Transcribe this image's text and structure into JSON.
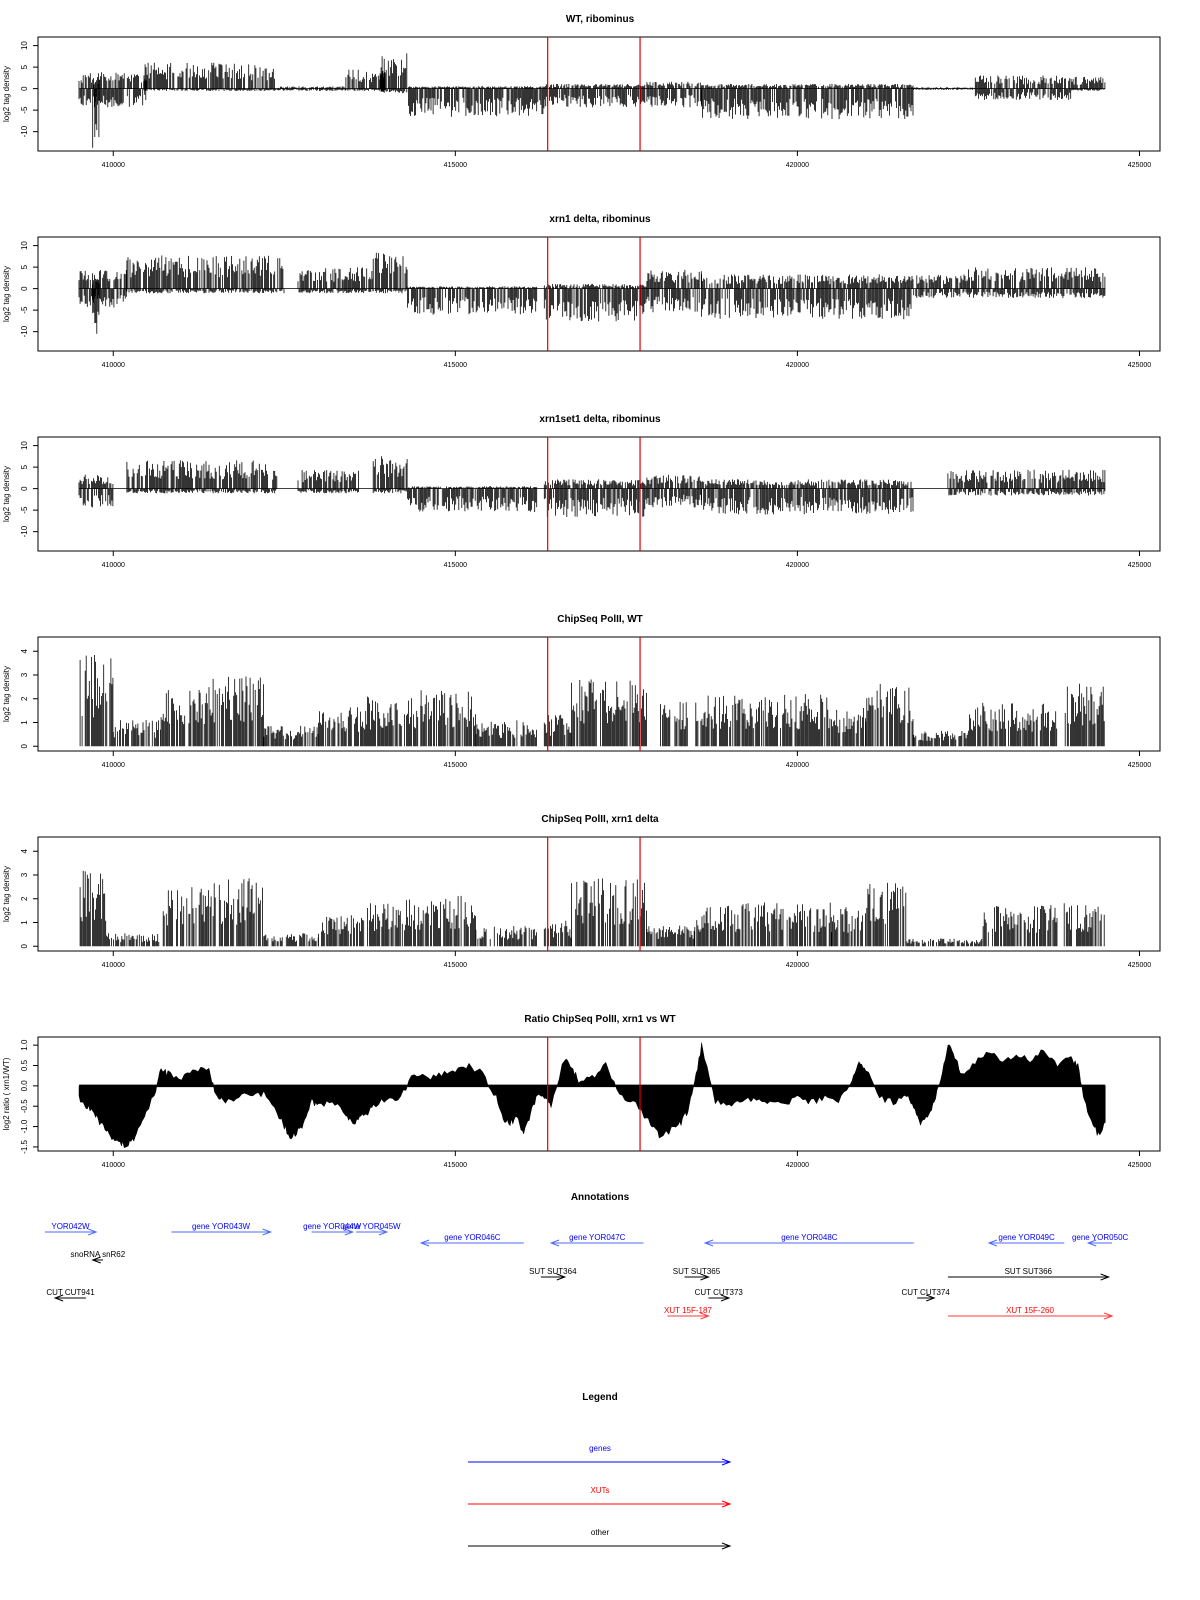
{
  "xaxis": {
    "range": [
      408900,
      425300
    ],
    "ticks": [
      410000,
      415000,
      420000,
      425000
    ],
    "tick_labels": [
      "410000",
      "415000",
      "420000",
      "425000"
    ]
  },
  "red_lines_x": [
    416350,
    417700
  ],
  "chart_data": [
    {
      "type": "bar",
      "title": "WT, ribominus",
      "ylabel": "log2 tag density",
      "ylim": [
        -14.5,
        12
      ],
      "yticks": [
        10,
        5,
        0,
        -5,
        -10
      ],
      "ytick_labels": [
        "10",
        "5",
        "0",
        "-5",
        "-10"
      ],
      "mode": "signed",
      "x_range": [
        409500,
        424500
      ],
      "segments": [
        {
          "from": 409500,
          "to": 410500,
          "pos": 3.5,
          "neg": -4
        },
        {
          "from": 409700,
          "to": 409800,
          "pos": 2,
          "neg": -13
        },
        {
          "from": 410450,
          "to": 412400,
          "pos": 5.5,
          "neg": -0.5
        },
        {
          "from": 412400,
          "to": 413400,
          "pos": 0.5,
          "neg": -0.5
        },
        {
          "from": 413400,
          "to": 414000,
          "pos": 4,
          "neg": -0.5
        },
        {
          "from": 413900,
          "to": 414300,
          "pos": 8,
          "neg": -1
        },
        {
          "from": 414300,
          "to": 416300,
          "pos": 0.5,
          "neg": -6
        },
        {
          "from": 416300,
          "to": 417800,
          "pos": 1,
          "neg": -4
        },
        {
          "from": 417800,
          "to": 418600,
          "pos": 1.5,
          "neg": -4
        },
        {
          "from": 418600,
          "to": 421700,
          "pos": 1,
          "neg": -6.5
        },
        {
          "from": 421700,
          "to": 422600,
          "pos": 0.3,
          "neg": -0.3
        },
        {
          "from": 422600,
          "to": 424000,
          "pos": 2.8,
          "neg": -2.5
        },
        {
          "from": 424000,
          "to": 424500,
          "pos": 2.5,
          "neg": -0.5
        }
      ]
    },
    {
      "type": "bar",
      "title": "xrn1 delta, ribominus",
      "ylabel": "log2 tag density",
      "ylim": [
        -14.5,
        12
      ],
      "yticks": [
        10,
        5,
        0,
        -5,
        -10
      ],
      "ytick_labels": [
        "10",
        "5",
        "0",
        "-5",
        "-10"
      ],
      "mode": "signed",
      "x_range": [
        409500,
        424500
      ],
      "segments": [
        {
          "from": 409500,
          "to": 410200,
          "pos": 4,
          "neg": -4
        },
        {
          "from": 409700,
          "to": 409800,
          "pos": 2,
          "neg": -11
        },
        {
          "from": 410200,
          "to": 412500,
          "pos": 7,
          "neg": -1
        },
        {
          "from": 412700,
          "to": 413800,
          "pos": 4.5,
          "neg": -1
        },
        {
          "from": 413800,
          "to": 414300,
          "pos": 8,
          "neg": -1
        },
        {
          "from": 414300,
          "to": 416200,
          "pos": 0.5,
          "neg": -5.5
        },
        {
          "from": 416300,
          "to": 417800,
          "pos": 1,
          "neg": -7
        },
        {
          "from": 417800,
          "to": 418600,
          "pos": 4,
          "neg": -5
        },
        {
          "from": 418600,
          "to": 421700,
          "pos": 3,
          "neg": -6.5
        },
        {
          "from": 421700,
          "to": 422500,
          "pos": 3,
          "neg": -2
        },
        {
          "from": 422500,
          "to": 424500,
          "pos": 4.5,
          "neg": -2
        }
      ]
    },
    {
      "type": "bar",
      "title": "xrn1set1 delta, ribominus",
      "ylabel": "log2 tag density",
      "ylim": [
        -14.5,
        12
      ],
      "yticks": [
        10,
        5,
        0,
        -5,
        -10
      ],
      "ytick_labels": [
        "10",
        "5",
        "0",
        "-5",
        "-10"
      ],
      "mode": "signed",
      "x_range": [
        409500,
        424500
      ],
      "segments": [
        {
          "from": 409500,
          "to": 410000,
          "pos": 3,
          "neg": -4
        },
        {
          "from": 410200,
          "to": 412400,
          "pos": 6,
          "neg": -1
        },
        {
          "from": 412700,
          "to": 413600,
          "pos": 4,
          "neg": -1
        },
        {
          "from": 413800,
          "to": 414300,
          "pos": 7,
          "neg": -1
        },
        {
          "from": 414300,
          "to": 416200,
          "pos": 0.5,
          "neg": -5
        },
        {
          "from": 416300,
          "to": 417800,
          "pos": 2,
          "neg": -6
        },
        {
          "from": 417800,
          "to": 418600,
          "pos": 3,
          "neg": -4
        },
        {
          "from": 418600,
          "to": 421700,
          "pos": 2,
          "neg": -5.5
        },
        {
          "from": 422200,
          "to": 424500,
          "pos": 4,
          "neg": -1.5
        }
      ]
    },
    {
      "type": "bar",
      "title": "ChipSeq PolII, WT",
      "ylabel": "log2 tag density",
      "ylim": [
        -0.2,
        4.6
      ],
      "yticks": [
        0,
        1,
        2,
        3,
        4
      ],
      "ytick_labels": [
        "0",
        "1",
        "2",
        "3",
        "4"
      ],
      "mode": "positive",
      "x_range": [
        409500,
        424500
      ],
      "segments": [
        {
          "from": 409500,
          "to": 410000,
          "pos": 3.5
        },
        {
          "from": 410000,
          "to": 410700,
          "pos": 1
        },
        {
          "from": 410700,
          "to": 411400,
          "pos": 2.2
        },
        {
          "from": 411400,
          "to": 412200,
          "pos": 2.7
        },
        {
          "from": 412200,
          "to": 413000,
          "pos": 0.8
        },
        {
          "from": 413000,
          "to": 413700,
          "pos": 1.5
        },
        {
          "from": 413700,
          "to": 414500,
          "pos": 2
        },
        {
          "from": 414500,
          "to": 415300,
          "pos": 2.2
        },
        {
          "from": 415300,
          "to": 416200,
          "pos": 1
        },
        {
          "from": 416300,
          "to": 416700,
          "pos": 1.2
        },
        {
          "from": 416700,
          "to": 417800,
          "pos": 2.6
        },
        {
          "from": 418000,
          "to": 418400,
          "pos": 1.7
        },
        {
          "from": 418500,
          "to": 419500,
          "pos": 2
        },
        {
          "from": 419500,
          "to": 420500,
          "pos": 2
        },
        {
          "from": 420500,
          "to": 421000,
          "pos": 1.5
        },
        {
          "from": 421000,
          "to": 421700,
          "pos": 2.4
        },
        {
          "from": 421700,
          "to": 422500,
          "pos": 0.6
        },
        {
          "from": 422500,
          "to": 423800,
          "pos": 1.7
        },
        {
          "from": 423900,
          "to": 424500,
          "pos": 2.5
        }
      ]
    },
    {
      "type": "bar",
      "title": "ChipSeq PolII, xrn1 delta",
      "ylabel": "log2 tag density",
      "ylim": [
        -0.2,
        4.6
      ],
      "yticks": [
        0,
        1,
        2,
        3,
        4
      ],
      "ytick_labels": [
        "0",
        "1",
        "2",
        "3",
        "4"
      ],
      "mode": "positive",
      "x_range": [
        409500,
        424500
      ],
      "segments": [
        {
          "from": 409500,
          "to": 409900,
          "pos": 3
        },
        {
          "from": 409900,
          "to": 410700,
          "pos": 0.5
        },
        {
          "from": 410700,
          "to": 411400,
          "pos": 2.3
        },
        {
          "from": 411400,
          "to": 412200,
          "pos": 2.6
        },
        {
          "from": 412200,
          "to": 413000,
          "pos": 0.5
        },
        {
          "from": 413000,
          "to": 413700,
          "pos": 1.2
        },
        {
          "from": 413700,
          "to": 414500,
          "pos": 1.8
        },
        {
          "from": 414500,
          "to": 415300,
          "pos": 2
        },
        {
          "from": 415300,
          "to": 416200,
          "pos": 0.8
        },
        {
          "from": 416300,
          "to": 416700,
          "pos": 1
        },
        {
          "from": 416700,
          "to": 417800,
          "pos": 2.6
        },
        {
          "from": 417800,
          "to": 418500,
          "pos": 0.8
        },
        {
          "from": 418500,
          "to": 420500,
          "pos": 1.7
        },
        {
          "from": 420500,
          "to": 421000,
          "pos": 1.5
        },
        {
          "from": 421000,
          "to": 421600,
          "pos": 2.6
        },
        {
          "from": 421600,
          "to": 422700,
          "pos": 0.3
        },
        {
          "from": 422700,
          "to": 423800,
          "pos": 1.6
        },
        {
          "from": 423900,
          "to": 424500,
          "pos": 1.7
        }
      ]
    },
    {
      "type": "area",
      "title": "Ratio ChipSeq PolII, xrn1 vs WT",
      "ylabel": "log2 ratio ( xrn1/WT)",
      "ylim": [
        -1.6,
        1.2
      ],
      "yticks": [
        1.0,
        0.5,
        0.0,
        -0.5,
        -1.0,
        -1.5
      ],
      "ytick_labels": [
        "1.0",
        "0.5",
        "0.0",
        "-0.5",
        "-1.0",
        "-1.5"
      ],
      "mode": "profile",
      "x": [
        409500,
        409600,
        409700,
        409800,
        409900,
        410000,
        410100,
        410200,
        410300,
        410400,
        410500,
        410600,
        410700,
        410800,
        411000,
        411200,
        411400,
        411500,
        411600,
        411800,
        412000,
        412200,
        412400,
        412500,
        412600,
        412700,
        412800,
        412900,
        413000,
        413200,
        413400,
        413500,
        413600,
        413700,
        413800,
        414000,
        414200,
        414400,
        414600,
        414800,
        415000,
        415200,
        415400,
        415600,
        415700,
        415800,
        415900,
        416000,
        416100,
        416200,
        416300,
        416400,
        416600,
        416700,
        416800,
        417000,
        417200,
        417400,
        417600,
        417800,
        417900,
        418000,
        418200,
        418300,
        418400,
        418500,
        418600,
        418800,
        419000,
        419200,
        419400,
        419600,
        419800,
        420000,
        420200,
        420400,
        420600,
        420800,
        420900,
        421000,
        421200,
        421400,
        421600,
        421700,
        421800,
        421900,
        422000,
        422100,
        422200,
        422300,
        422400,
        422600,
        422800,
        423000,
        423200,
        423400,
        423600,
        423800,
        424000,
        424100,
        424200,
        424300,
        424400,
        424500
      ],
      "y": [
        -0.3,
        -0.5,
        -0.6,
        -0.9,
        -1.1,
        -1.3,
        -1.4,
        -1.5,
        -1.3,
        -1.0,
        -0.6,
        -0.2,
        0.4,
        0.3,
        0.2,
        0.4,
        0.4,
        -0.2,
        -0.4,
        -0.3,
        -0.2,
        -0.2,
        -0.7,
        -1.0,
        -1.3,
        -1.1,
        -0.9,
        -0.4,
        -0.5,
        -0.4,
        -0.7,
        -0.9,
        -0.8,
        -0.7,
        -0.5,
        -0.3,
        -0.3,
        0.3,
        0.2,
        0.3,
        0.4,
        0.5,
        0.3,
        -0.3,
        -0.8,
        -0.9,
        -0.8,
        -1.2,
        -0.7,
        -0.2,
        -0.3,
        -0.5,
        0.7,
        0.5,
        0.1,
        0.2,
        0.5,
        -0.2,
        -0.4,
        -0.8,
        -1.0,
        -1.3,
        -1.0,
        -0.9,
        -0.6,
        0.1,
        1.0,
        -0.4,
        -0.5,
        -0.4,
        -0.3,
        -0.4,
        -0.5,
        -0.3,
        -0.4,
        -0.3,
        -0.4,
        0.1,
        0.6,
        0.4,
        -0.3,
        -0.4,
        -0.2,
        -0.5,
        -0.9,
        -0.8,
        -0.4,
        0.2,
        1.0,
        0.7,
        0.3,
        0.6,
        0.8,
        0.6,
        0.8,
        0.6,
        0.9,
        0.5,
        0.7,
        0.5,
        -0.4,
        -0.9,
        -1.2,
        -0.9
      ]
    }
  ],
  "annotations": {
    "title": "Annotations",
    "items": [
      {
        "label": "YOR042W",
        "class": "genes",
        "x1": 409000,
        "x2": 409750,
        "dir": "right",
        "row": 0
      },
      {
        "label": "gene YOR043W",
        "class": "genes",
        "x1": 410850,
        "x2": 412300,
        "dir": "right",
        "row": 0
      },
      {
        "label": "gene YOR044W",
        "class": "genes",
        "x1": 412900,
        "x2": 413500,
        "dir": "right",
        "row": 0
      },
      {
        "label": "gene YOR045W",
        "class": "genes",
        "x1": 413550,
        "x2": 414000,
        "dir": "right",
        "row": 0
      },
      {
        "label": "gene YOR046C",
        "class": "genes",
        "x1": 414500,
        "x2": 416000,
        "dir": "left",
        "row": 1
      },
      {
        "label": "gene YOR047C",
        "class": "genes",
        "x1": 416400,
        "x2": 417750,
        "dir": "left",
        "row": 1
      },
      {
        "label": "gene YOR048C",
        "class": "genes",
        "x1": 418650,
        "x2": 421700,
        "dir": "left",
        "row": 1
      },
      {
        "label": "gene YOR049C",
        "class": "genes",
        "x1": 422800,
        "x2": 423900,
        "dir": "left",
        "row": 1
      },
      {
        "label": "gene YOR050C",
        "class": "genes",
        "x1": 424250,
        "x2": 424600,
        "dir": "left",
        "row": 1
      },
      {
        "label": "snoRNA snR62",
        "class": "other",
        "x1": 409700,
        "x2": 409850,
        "dir": "left",
        "row": 2
      },
      {
        "label": "SUT SUT364",
        "class": "other",
        "x1": 416250,
        "x2": 416600,
        "dir": "right",
        "row": 3
      },
      {
        "label": "SUT SUT365",
        "class": "other",
        "x1": 418350,
        "x2": 418700,
        "dir": "right",
        "row": 3
      },
      {
        "label": "SUT SUT366",
        "class": "other",
        "x1": 422200,
        "x2": 424550,
        "dir": "right",
        "row": 3
      },
      {
        "label": "CUT CUT373",
        "class": "other",
        "x1": 418700,
        "x2": 419000,
        "dir": "right",
        "row": 4
      },
      {
        "label": "CUT CUT374",
        "class": "other",
        "x1": 421750,
        "x2": 422000,
        "dir": "right",
        "row": 4
      },
      {
        "label": "CUT CUT941",
        "class": "other",
        "x1": 409150,
        "x2": 409600,
        "dir": "left",
        "row": 4
      },
      {
        "label": "XUT 15F-187",
        "class": "xuts",
        "x1": 418100,
        "x2": 418700,
        "dir": "right",
        "row": 5
      },
      {
        "label": "XUT 15F-260",
        "class": "xuts",
        "x1": 422200,
        "x2": 424600,
        "dir": "right",
        "row": 5
      }
    ]
  },
  "legend": {
    "title": "Legend",
    "items": [
      {
        "label": "genes",
        "color": "#0000ff"
      },
      {
        "label": "XUTs",
        "color": "#ff0000"
      },
      {
        "label": "other",
        "color": "#000000"
      }
    ]
  },
  "colors": {
    "genes": "#0000ff",
    "xuts": "#ff0000",
    "other": "#000000",
    "arrow_genes": "#4f6bff",
    "arrow_xuts": "#ff3b3b",
    "red_line": "#e00000",
    "data": "#000000"
  }
}
